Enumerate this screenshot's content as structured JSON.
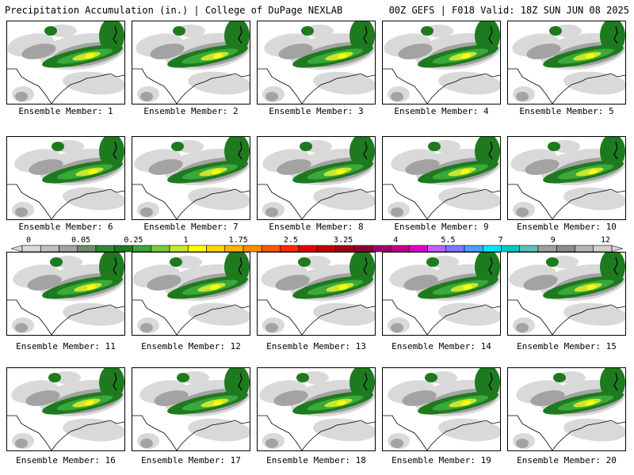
{
  "header": {
    "left_title": "Precipitation Accumulation (in.) | College of DuPage NEXLAB",
    "right_title": "00Z GEFS | F018 Valid: 18Z SUN JUN 08 2025"
  },
  "members": [
    {
      "label": "Ensemble Member: 1"
    },
    {
      "label": "Ensemble Member: 2"
    },
    {
      "label": "Ensemble Member: 3"
    },
    {
      "label": "Ensemble Member: 4"
    },
    {
      "label": "Ensemble Member: 5"
    },
    {
      "label": "Ensemble Member: 6"
    },
    {
      "label": "Ensemble Member: 7"
    },
    {
      "label": "Ensemble Member: 8"
    },
    {
      "label": "Ensemble Member: 9"
    },
    {
      "label": "Ensemble Member: 10"
    },
    {
      "label": "Ensemble Member: 11"
    },
    {
      "label": "Ensemble Member: 12"
    },
    {
      "label": "Ensemble Member: 13"
    },
    {
      "label": "Ensemble Member: 14"
    },
    {
      "label": "Ensemble Member: 15"
    },
    {
      "label": "Ensemble Member: 16"
    },
    {
      "label": "Ensemble Member: 17"
    },
    {
      "label": "Ensemble Member: 18"
    },
    {
      "label": "Ensemble Member: 19"
    },
    {
      "label": "Ensemble Member: 20"
    }
  ],
  "colorbar": {
    "labels": [
      "0",
      "0.05",
      "0.25",
      "1",
      "1.75",
      "2.5",
      "3.25",
      "4",
      "5.5",
      "7",
      "9",
      "12"
    ],
    "colors": [
      "#d9d9d9",
      "#bfbfbf",
      "#a3a3a3",
      "#6e8f6e",
      "#2e8b2e",
      "#1e7a1e",
      "#3aa83a",
      "#7ac943",
      "#c8e62e",
      "#ffff00",
      "#ffd700",
      "#ffb000",
      "#ff8c00",
      "#ff5a00",
      "#ff2a00",
      "#e60000",
      "#c00000",
      "#a00018",
      "#8b0033",
      "#a0006e",
      "#c0008c",
      "#e000c8",
      "#c060ff",
      "#7a7aff",
      "#4aa0ff",
      "#00e5ff",
      "#00c8c8",
      "#5fbfbf",
      "#a0a0a0",
      "#8c8c8c",
      "#b4b4b4",
      "#d0d0d0"
    ]
  },
  "palette": {
    "gray_light": "#d9d9d9",
    "gray_mid": "#a3a3a3",
    "green_dark": "#1e7a1e",
    "green": "#3aa83a",
    "yellow_green": "#c8e62e",
    "yellow": "#ffff00"
  }
}
